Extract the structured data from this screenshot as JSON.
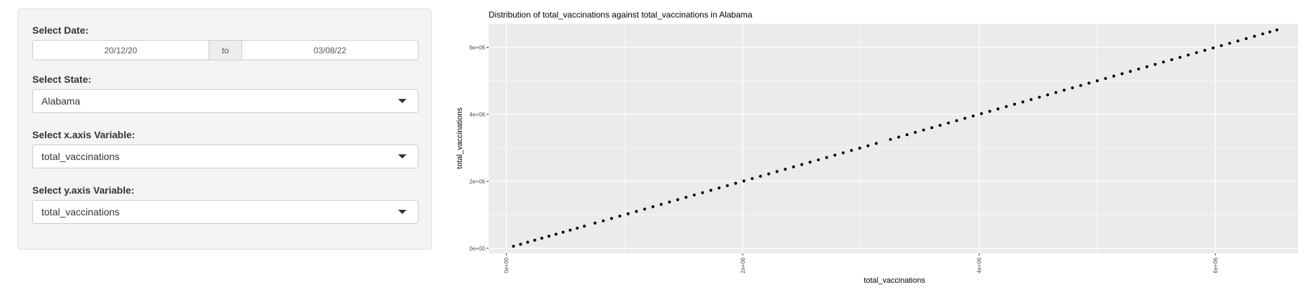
{
  "sidebar": {
    "date_label": "Select Date:",
    "date_start": "20/12/20",
    "date_sep": "to",
    "date_end": "03/08/22",
    "state_label": "Select State:",
    "state_value": "Alabama",
    "x_label": "Select x.axis Variable:",
    "x_value": "total_vaccinations",
    "y_label": "Select y.axis Variable:",
    "y_value": "total_vaccinations"
  },
  "chart_data": {
    "type": "scatter",
    "title": "Distribution of total_vaccinations against total_vaccinations in Alabama",
    "xlabel": "total_vaccinations",
    "ylabel": "total_vaccinations",
    "xlim": [
      -150000,
      6700000
    ],
    "ylim": [
      -150000,
      6700000
    ],
    "x_ticks": [
      0,
      2000000,
      4000000,
      6000000
    ],
    "x_tick_labels": [
      "0e+00",
      "2e+06",
      "4e+06",
      "6e+06"
    ],
    "y_ticks": [
      0,
      2000000,
      4000000,
      6000000
    ],
    "y_tick_labels": [
      "0e+00",
      "2e+06",
      "4e+06",
      "6e+06"
    ],
    "grid": true,
    "x": [
      60000,
      120000,
      180000,
      240000,
      300000,
      360000,
      420000,
      480000,
      540000,
      600000,
      660000,
      750000,
      820000,
      890000,
      960000,
      1030000,
      1100000,
      1170000,
      1240000,
      1310000,
      1380000,
      1450000,
      1520000,
      1590000,
      1660000,
      1730000,
      1800000,
      1870000,
      1940000,
      2010000,
      2080000,
      2150000,
      2220000,
      2290000,
      2360000,
      2430000,
      2500000,
      2570000,
      2640000,
      2710000,
      2780000,
      2850000,
      2920000,
      2990000,
      3060000,
      3130000,
      3250000,
      3320000,
      3390000,
      3460000,
      3530000,
      3600000,
      3670000,
      3740000,
      3810000,
      3880000,
      3950000,
      4020000,
      4090000,
      4160000,
      4230000,
      4300000,
      4370000,
      4440000,
      4510000,
      4580000,
      4650000,
      4720000,
      4790000,
      4860000,
      4930000,
      5000000,
      5070000,
      5140000,
      5210000,
      5280000,
      5350000,
      5420000,
      5490000,
      5560000,
      5630000,
      5700000,
      5770000,
      5840000,
      5910000,
      5980000,
      6050000,
      6120000,
      6190000,
      6260000,
      6330000,
      6400000,
      6460000,
      6520000
    ],
    "y": [
      60000,
      120000,
      180000,
      240000,
      300000,
      360000,
      420000,
      480000,
      540000,
      600000,
      660000,
      750000,
      820000,
      890000,
      960000,
      1030000,
      1100000,
      1170000,
      1240000,
      1310000,
      1380000,
      1450000,
      1520000,
      1590000,
      1660000,
      1730000,
      1800000,
      1870000,
      1940000,
      2010000,
      2080000,
      2150000,
      2220000,
      2290000,
      2360000,
      2430000,
      2500000,
      2570000,
      2640000,
      2710000,
      2780000,
      2850000,
      2920000,
      2990000,
      3060000,
      3130000,
      3250000,
      3320000,
      3390000,
      3460000,
      3530000,
      3600000,
      3670000,
      3740000,
      3810000,
      3880000,
      3950000,
      4020000,
      4090000,
      4160000,
      4230000,
      4300000,
      4370000,
      4440000,
      4510000,
      4580000,
      4650000,
      4720000,
      4790000,
      4860000,
      4930000,
      5000000,
      5070000,
      5140000,
      5210000,
      5280000,
      5350000,
      5420000,
      5490000,
      5560000,
      5630000,
      5700000,
      5770000,
      5840000,
      5910000,
      5980000,
      6050000,
      6120000,
      6190000,
      6260000,
      6330000,
      6400000,
      6460000,
      6520000
    ],
    "colors": {
      "panel": "#ebebeb",
      "grid": "#ffffff",
      "point": "#000000"
    }
  }
}
